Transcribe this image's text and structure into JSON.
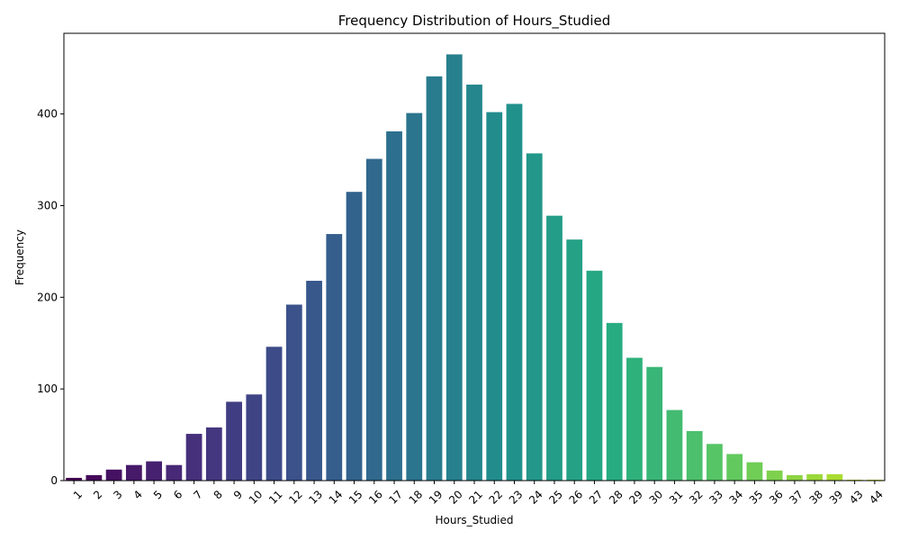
{
  "chart_data": {
    "type": "bar",
    "title": "Frequency Distribution of Hours_Studied",
    "xlabel": "Hours_Studied",
    "ylabel": "Frequency",
    "categories": [
      "1",
      "2",
      "3",
      "4",
      "5",
      "6",
      "7",
      "8",
      "9",
      "10",
      "11",
      "12",
      "13",
      "14",
      "15",
      "16",
      "17",
      "18",
      "19",
      "20",
      "21",
      "22",
      "23",
      "24",
      "25",
      "26",
      "27",
      "28",
      "29",
      "30",
      "31",
      "32",
      "33",
      "34",
      "35",
      "36",
      "37",
      "38",
      "39",
      "43",
      "44"
    ],
    "values": [
      3,
      6,
      12,
      17,
      21,
      17,
      51,
      58,
      86,
      94,
      146,
      192,
      218,
      269,
      315,
      351,
      381,
      401,
      441,
      465,
      432,
      402,
      411,
      357,
      289,
      263,
      229,
      172,
      134,
      124,
      77,
      54,
      40,
      29,
      20,
      11,
      6,
      7,
      7,
      1,
      1
    ],
    "ylim": [
      0,
      488
    ],
    "yticks": [
      0,
      100,
      200,
      300,
      400
    ],
    "grid": false,
    "palette": "viridis"
  }
}
